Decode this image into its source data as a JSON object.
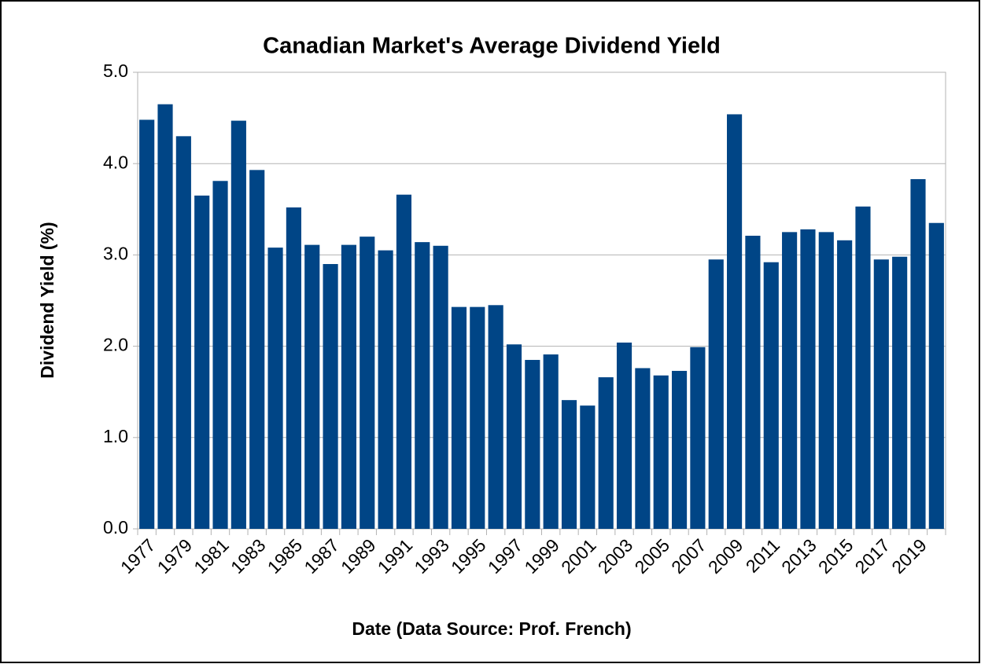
{
  "chart_data": {
    "type": "bar",
    "title": "Canadian Market's Average Dividend Yield",
    "x_label": "Date (Data Source: Prof. French)",
    "y_label": "Dividend Yield (%)",
    "categories": [
      "1977",
      null,
      "1979",
      null,
      "1981",
      null,
      "1983",
      null,
      "1985",
      null,
      "1987",
      null,
      "1989",
      null,
      "1991",
      null,
      "1993",
      null,
      "1995",
      null,
      "1997",
      null,
      "1999",
      null,
      "2001",
      null,
      "2003",
      null,
      "2005",
      null,
      "2007",
      null,
      "2009",
      null,
      "2011",
      null,
      "2013",
      null,
      "2015",
      null,
      "2017",
      null,
      "2019",
      null
    ],
    "values": [
      4.48,
      4.65,
      4.3,
      3.65,
      3.81,
      4.47,
      3.93,
      3.08,
      3.52,
      3.11,
      2.9,
      3.11,
      3.2,
      3.05,
      3.66,
      3.14,
      3.1,
      2.43,
      2.43,
      2.45,
      2.02,
      1.85,
      1.91,
      1.41,
      1.35,
      1.66,
      2.04,
      1.76,
      1.68,
      1.73,
      1.99,
      2.95,
      4.54,
      3.21,
      2.92,
      3.25,
      3.28,
      3.25,
      3.16,
      3.53,
      2.95,
      2.98,
      3.83,
      3.35
    ],
    "color": "#004586",
    "ylim": [
      0,
      5
    ],
    "yticks": [
      {
        "value": 0,
        "label": "0.0"
      },
      {
        "value": 1,
        "label": "1.0"
      },
      {
        "value": 2,
        "label": "2.0"
      },
      {
        "value": 3,
        "label": "3.0"
      },
      {
        "value": 4,
        "label": "4.0"
      },
      {
        "value": 5,
        "label": "5.0"
      }
    ],
    "grid": true
  }
}
